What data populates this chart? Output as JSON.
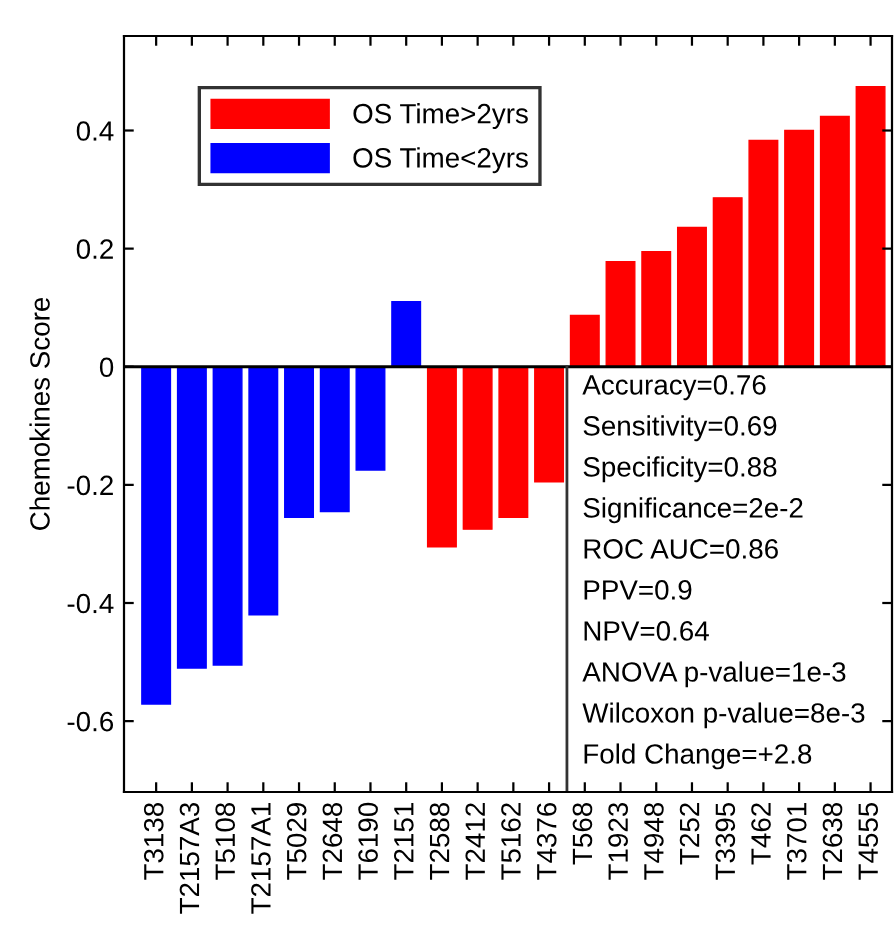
{
  "chart_data": {
    "type": "bar",
    "ylabel": "Chemokines Score",
    "categories": [
      "T3138",
      "T2157A3",
      "T5108",
      "T2157A1",
      "T5029",
      "T2648",
      "T6190",
      "T2151",
      "T2588",
      "T2412",
      "T5162",
      "T4376",
      "T568",
      "T1923",
      "T4948",
      "T252",
      "T3395",
      "T462",
      "T3701",
      "T2638",
      "T4555"
    ],
    "series": [
      {
        "name": "OS Time>2yrs",
        "color": "#ff0000",
        "values": [
          null,
          null,
          null,
          null,
          null,
          null,
          null,
          null,
          -0.305,
          -0.275,
          -0.255,
          -0.195,
          0.087,
          0.178,
          0.195,
          0.236,
          0.286,
          0.383,
          0.4,
          0.424,
          0.474
        ]
      },
      {
        "name": "OS Time<2yrs",
        "color": "#0000ff",
        "values": [
          -0.571,
          -0.51,
          -0.505,
          -0.42,
          -0.255,
          -0.245,
          -0.175,
          0.11,
          null,
          null,
          null,
          null,
          null,
          null,
          null,
          null,
          null,
          null,
          null,
          null,
          null
        ]
      }
    ],
    "ylim": [
      -0.72,
      0.56
    ],
    "yticks": [
      -0.6,
      -0.4,
      -0.2,
      0,
      0.2,
      0.4
    ],
    "ref_lines": [
      {
        "axis": "y",
        "value": 0,
        "color": "#000000"
      }
    ],
    "legend": "top left",
    "annotations": [
      "Accuracy=0.76",
      "Sensitivity=0.69",
      "Specificity=0.88",
      "Significance=2e-2",
      "ROC AUC=0.86",
      "PPV=0.9",
      "NPV=0.64",
      "ANOVA p-value=1e-3",
      "Wilcoxon p-value=8e-3",
      "Fold Change=+2.8"
    ]
  }
}
